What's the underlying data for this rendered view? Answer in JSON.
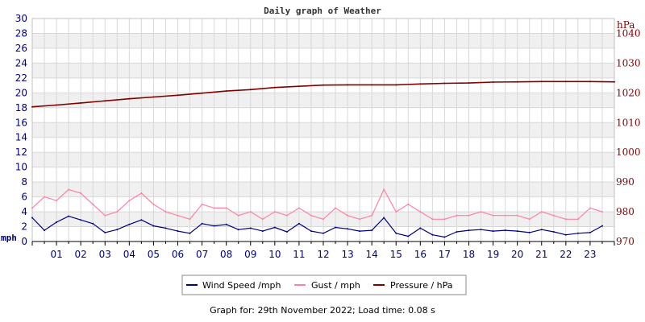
{
  "footer": "Graph for: 29th November 2022; Load time: 0.08 s",
  "chart_data": {
    "type": "line",
    "title": "Daily graph of Weather",
    "x_ticks": [
      "01",
      "02",
      "03",
      "04",
      "05",
      "06",
      "07",
      "08",
      "09",
      "10",
      "11",
      "12",
      "13",
      "14",
      "15",
      "16",
      "17",
      "18",
      "19",
      "20",
      "21",
      "22",
      "23"
    ],
    "xlim": [
      0,
      24
    ],
    "left_axis": {
      "unit_label": "mph",
      "ylim": [
        0,
        30
      ],
      "ticks": [
        0,
        2,
        4,
        6,
        8,
        10,
        12,
        14,
        16,
        18,
        20,
        22,
        24,
        26,
        28,
        30
      ]
    },
    "right_axis": {
      "unit_label": "hPa",
      "ylim": [
        970,
        1045
      ],
      "ticks": [
        970,
        980,
        990,
        1000,
        1010,
        1020,
        1030,
        1040
      ]
    },
    "grid": true,
    "legend_position": "bottom",
    "colors": {
      "wind": "#000080",
      "gust": "#ff80a0",
      "pressure": "#800000",
      "band": "#f0f0f0"
    },
    "series": [
      {
        "name": "Wind Speed /mph",
        "axis": "left",
        "x": [
          0,
          0.5,
          1,
          1.5,
          2,
          2.5,
          3,
          3.5,
          4,
          4.5,
          5,
          5.5,
          6,
          6.5,
          7,
          7.5,
          8,
          8.5,
          9,
          9.5,
          10,
          10.5,
          11,
          11.5,
          12,
          12.5,
          13,
          13.5,
          14,
          14.5,
          15,
          15.5,
          16,
          16.5,
          17,
          17.5,
          18,
          18.5,
          19,
          19.5,
          20,
          20.5,
          21,
          21.5,
          22,
          22.5,
          23,
          23.5
        ],
        "values": [
          3.2,
          1.5,
          2.6,
          3.4,
          2.9,
          2.4,
          1.2,
          1.6,
          2.3,
          2.9,
          2.1,
          1.8,
          1.4,
          1.1,
          2.4,
          2.1,
          2.3,
          1.6,
          1.8,
          1.4,
          1.9,
          1.3,
          2.4,
          1.4,
          1.1,
          1.9,
          1.7,
          1.4,
          1.5,
          3.2,
          1.1,
          0.7,
          1.8,
          0.9,
          0.6,
          1.3,
          1.5,
          1.6,
          1.4,
          1.5,
          1.4,
          1.2,
          1.6,
          1.3,
          0.9,
          1.1,
          1.2,
          2.1
        ]
      },
      {
        "name": "Gust / mph",
        "axis": "left",
        "x": [
          0,
          0.5,
          1,
          1.5,
          2,
          2.5,
          3,
          3.5,
          4,
          4.5,
          5,
          5.5,
          6,
          6.5,
          7,
          7.5,
          8,
          8.5,
          9,
          9.5,
          10,
          10.5,
          11,
          11.5,
          12,
          12.5,
          13,
          13.5,
          14,
          14.5,
          15,
          15.5,
          16,
          16.5,
          17,
          17.5,
          18,
          18.5,
          19,
          19.5,
          20,
          20.5,
          21,
          21.5,
          22,
          22.5,
          23,
          23.5
        ],
        "values": [
          4.5,
          6.0,
          5.5,
          7.0,
          6.5,
          5.0,
          3.5,
          4.0,
          5.5,
          6.5,
          5.0,
          4.0,
          3.5,
          3.0,
          5.0,
          4.5,
          4.5,
          3.5,
          4.0,
          3.0,
          4.0,
          3.5,
          4.5,
          3.5,
          3.0,
          4.5,
          3.5,
          3.0,
          3.5,
          7.0,
          4.0,
          5.0,
          4.0,
          3.0,
          3.0,
          3.5,
          3.5,
          4.0,
          3.5,
          3.5,
          3.5,
          3.0,
          4.0,
          3.5,
          3.0,
          3.0,
          4.5,
          4.0
        ]
      },
      {
        "name": "Pressure / hPa",
        "axis": "right",
        "x": [
          0,
          1,
          2,
          3,
          4,
          5,
          6,
          7,
          8,
          9,
          10,
          11,
          12,
          13,
          14,
          15,
          16,
          17,
          18,
          19,
          20,
          21,
          22,
          23,
          24
        ],
        "values": [
          1015.3,
          1015.9,
          1016.6,
          1017.3,
          1018.0,
          1018.6,
          1019.2,
          1019.9,
          1020.6,
          1021.1,
          1021.8,
          1022.2,
          1022.6,
          1022.7,
          1022.7,
          1022.7,
          1023.0,
          1023.2,
          1023.3,
          1023.6,
          1023.7,
          1023.8,
          1023.8,
          1023.8,
          1023.7
        ]
      }
    ]
  }
}
